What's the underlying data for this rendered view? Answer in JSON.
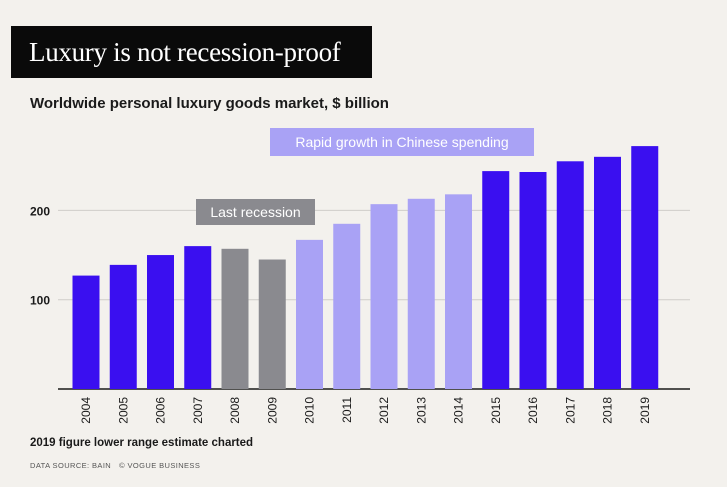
{
  "title": "Luxury is not recession-proof",
  "chart_data": {
    "type": "bar",
    "title": "Worldwide personal luxury goods market, $ billion",
    "xlabel": "",
    "ylabel": "",
    "ylim": [
      0,
      300
    ],
    "yticks": [
      100,
      200
    ],
    "grid": true,
    "categories": [
      "2004",
      "2005",
      "2006",
      "2007",
      "2008",
      "2009",
      "2010",
      "2011",
      "2012",
      "2013",
      "2014",
      "2015",
      "2016",
      "2017",
      "2018",
      "2019"
    ],
    "values": [
      127,
      139,
      150,
      160,
      157,
      145,
      167,
      185,
      207,
      213,
      218,
      244,
      243,
      255,
      260,
      272
    ],
    "bar_groups": [
      "normal",
      "normal",
      "normal",
      "normal",
      "recession",
      "recession",
      "china",
      "china",
      "china",
      "china",
      "china",
      "normal",
      "normal",
      "normal",
      "normal",
      "normal"
    ],
    "annotations": [
      {
        "text": "Last recession",
        "group": "recession"
      },
      {
        "text": "Rapid growth in Chinese spending",
        "group": "china"
      }
    ]
  },
  "colors": {
    "normal": "#3a0ff0",
    "recession": "#8a8a8f",
    "china": "#a9a2f5",
    "recession_label_bg": "#8a8a8f",
    "china_label_bg": "#a9a2f5"
  },
  "footnote": "2019 figure lower range estimate charted",
  "source": {
    "label": "DATA SOURCE: BAIN",
    "credit": "© VOGUE BUSINESS"
  }
}
